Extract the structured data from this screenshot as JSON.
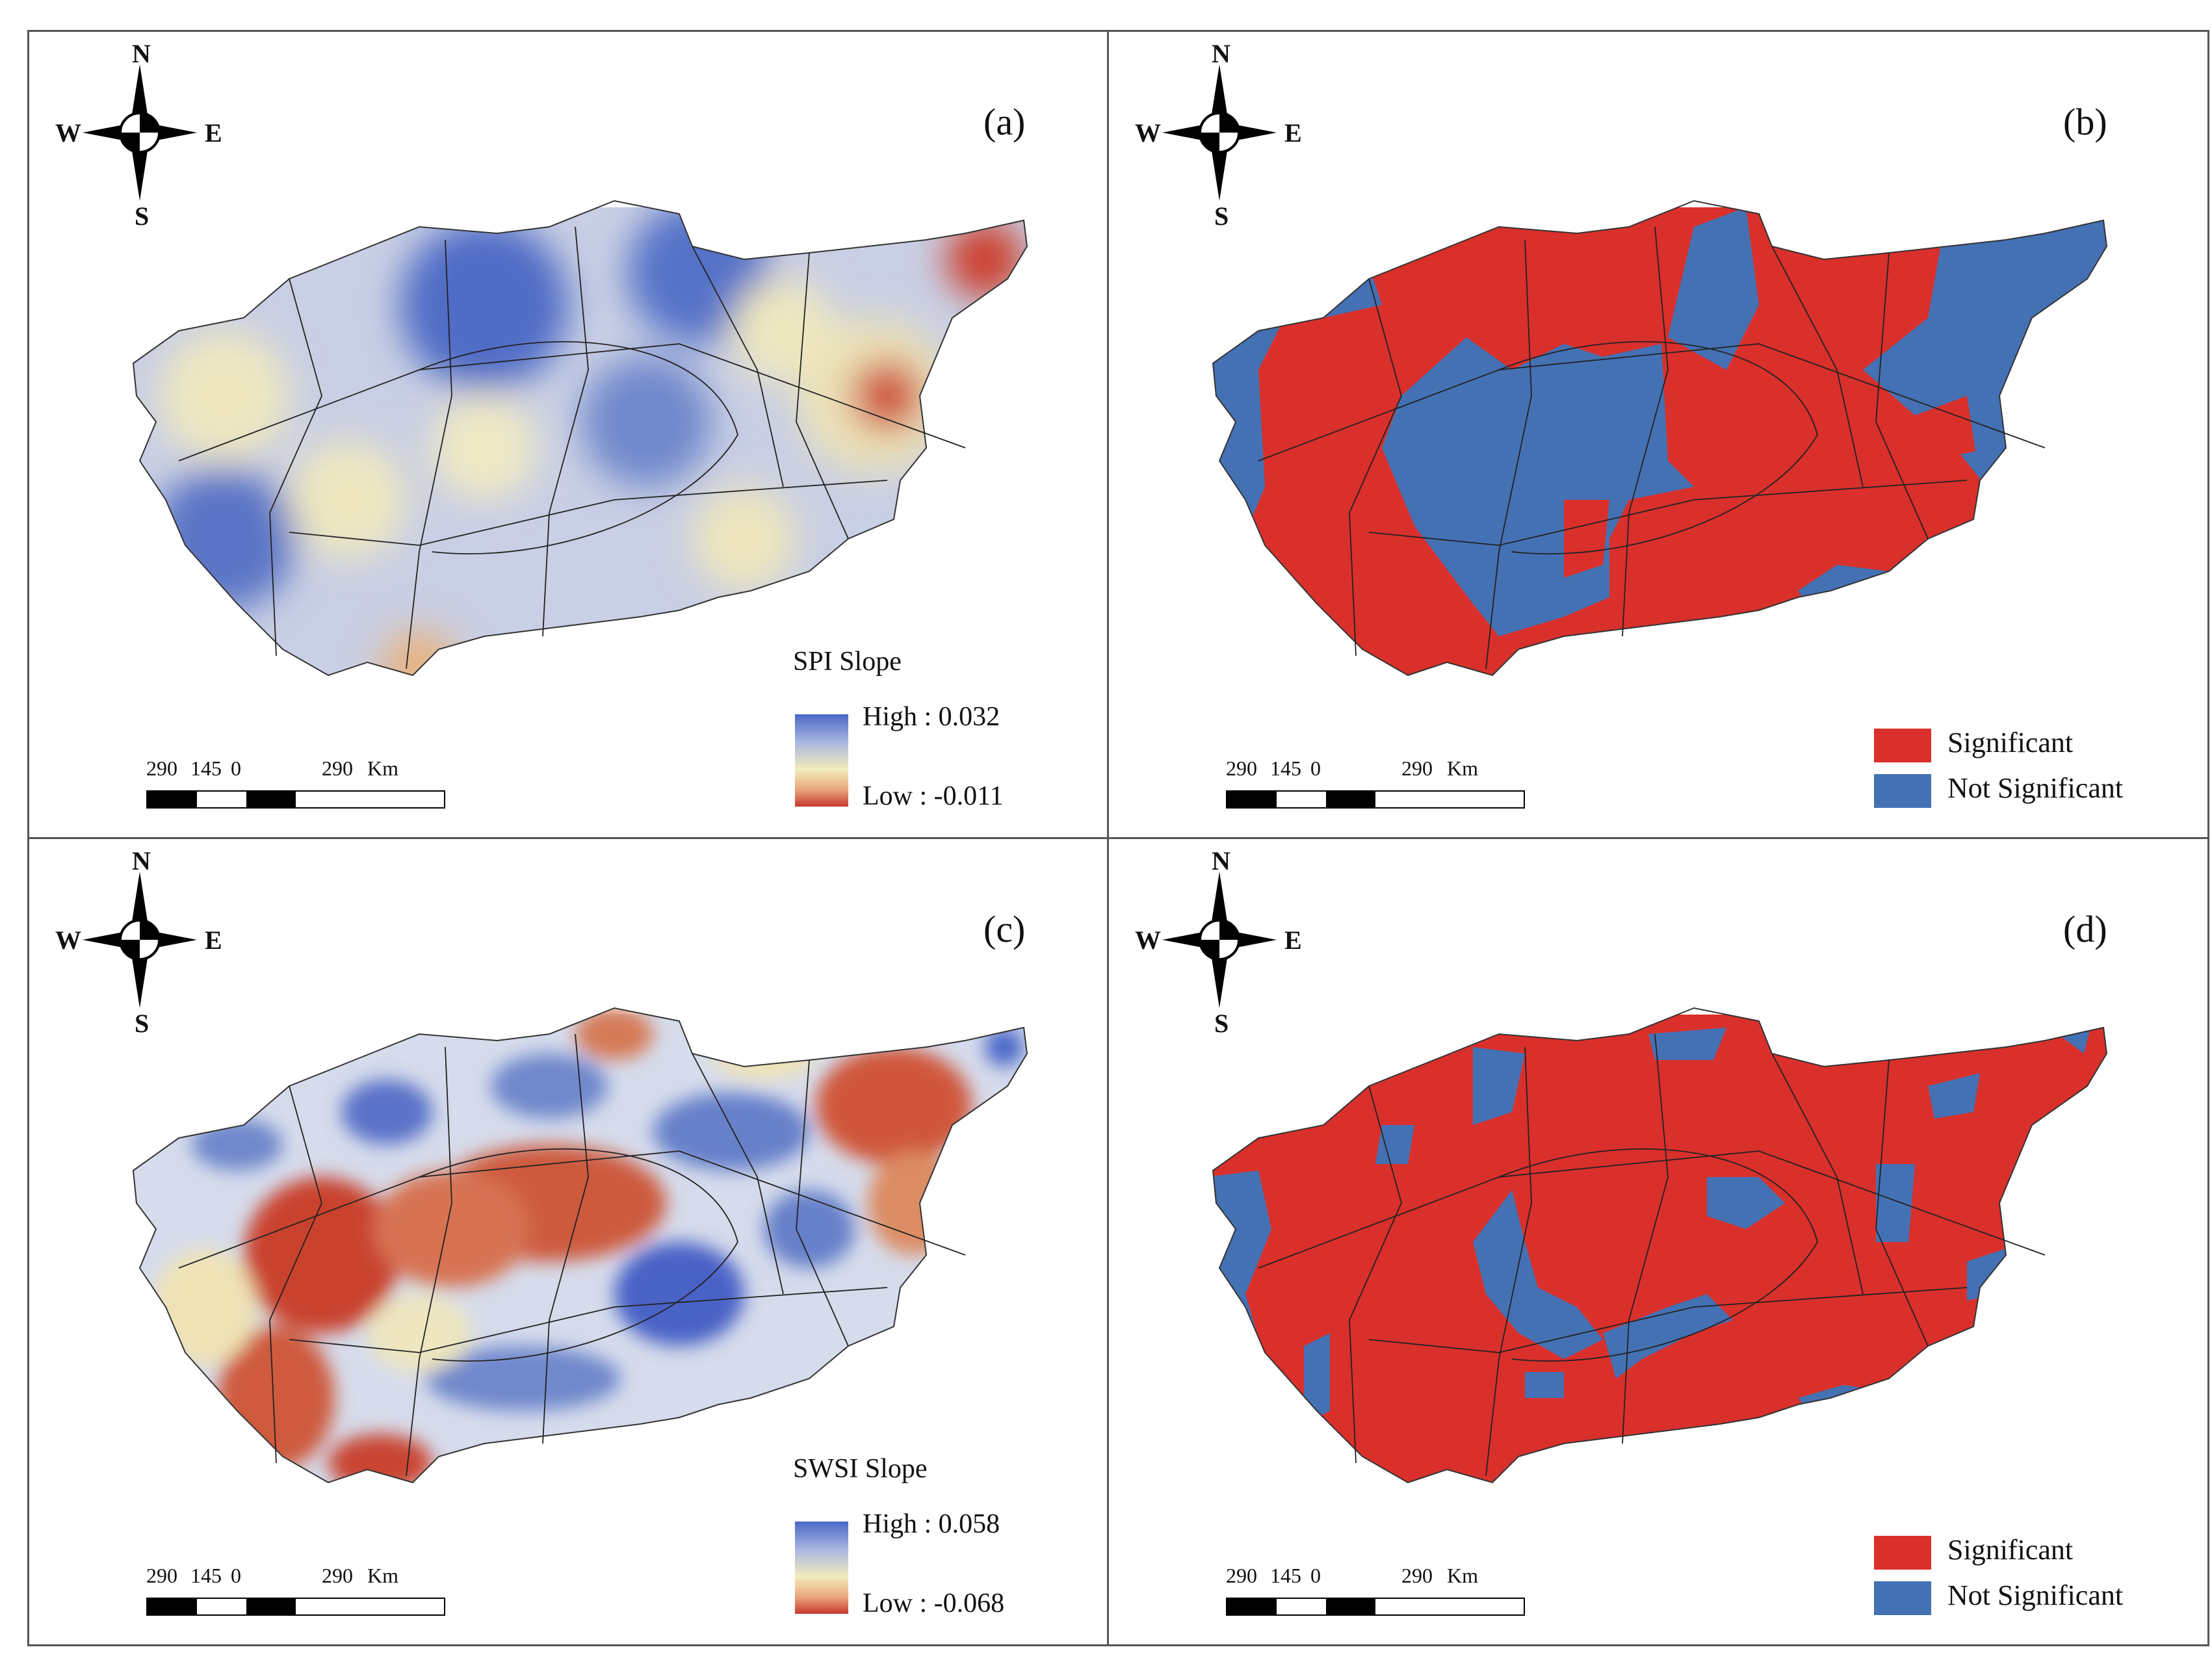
{
  "compass": {
    "n": "N",
    "s": "S",
    "w": "W",
    "e": "E"
  },
  "scalebar": {
    "ticks": [
      "290",
      "145",
      "0",
      "290"
    ],
    "unit": "Km"
  },
  "colors": {
    "significant": "#d9302b",
    "not_significant": "#4471b4",
    "high": "#4a68c8",
    "low": "#c8382e",
    "mid": "#f3ecbc"
  },
  "panels": [
    {
      "label": "(a)",
      "kind": "continuous",
      "legend_title": "SPI Slope",
      "high_label": "High : 0.032",
      "low_label": "Low : -0.011",
      "high_value": 0.032,
      "low_value": -0.011
    },
    {
      "label": "(b)",
      "kind": "categorical",
      "significant_label": "Significant",
      "not_significant_label": "Not Significant"
    },
    {
      "label": "(c)",
      "kind": "continuous",
      "legend_title": "SWSI Slope",
      "high_label": "High : 0.058",
      "low_label": "Low : -0.068",
      "high_value": 0.058,
      "low_value": -0.068
    },
    {
      "label": "(d)",
      "kind": "categorical",
      "significant_label": "Significant",
      "not_significant_label": "Not Significant"
    }
  ]
}
